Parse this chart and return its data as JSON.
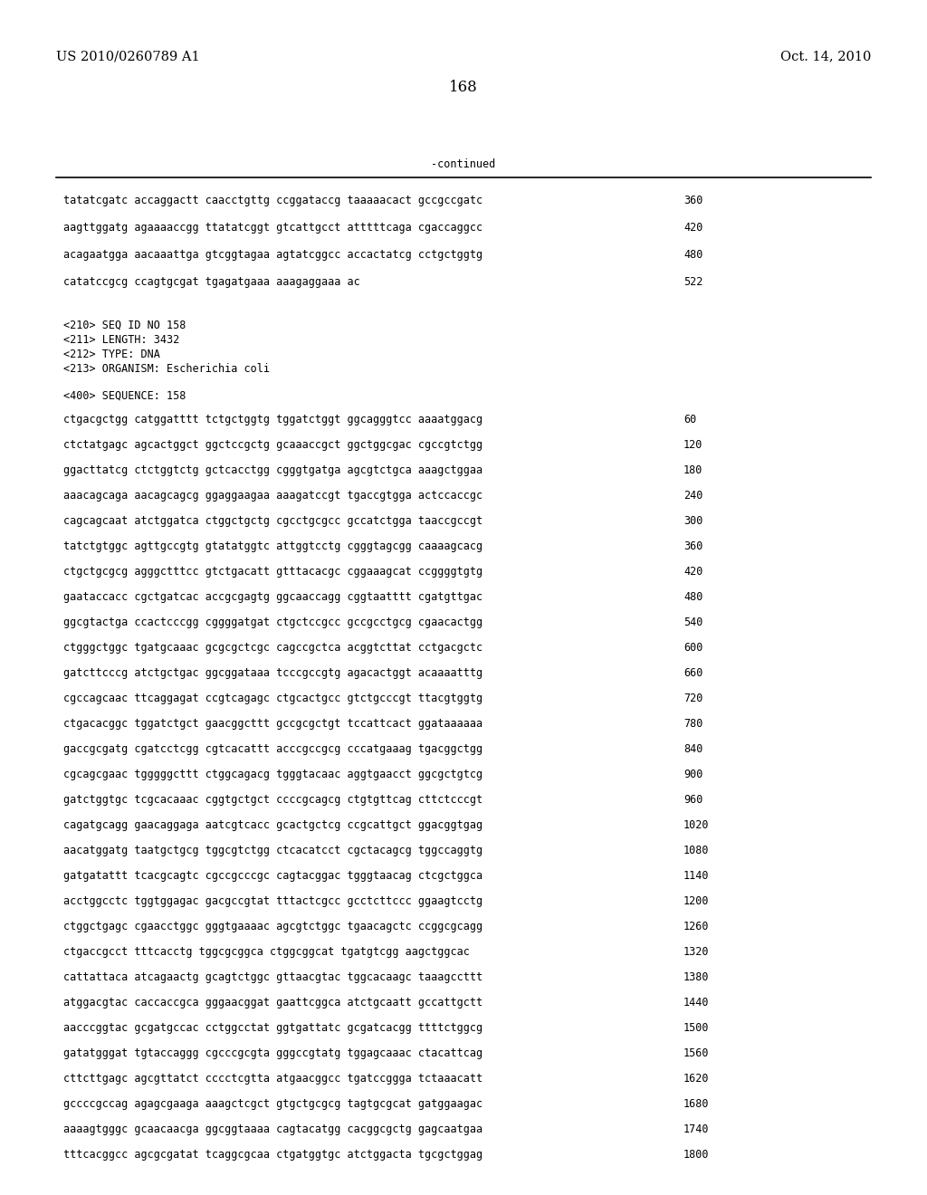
{
  "header_left": "US 2010/0260789 A1",
  "header_right": "Oct. 14, 2010",
  "page_number": "168",
  "continued_label": "-continued",
  "background_color": "#ffffff",
  "text_color": "#000000",
  "font_size_header": 10.5,
  "font_size_body": 8.5,
  "font_size_page": 12.0,
  "continued_lines": [
    [
      "tatatcgatc accaggactt caacctgttg ccggataccg taaaaacact gccgccgatc",
      "360"
    ],
    [
      "aagttggatg agaaaaccgg ttatatcggt gtcattgcct atttttcaga cgaccaggcc",
      "420"
    ],
    [
      "acagaatgga aacaaattga gtcggtagaa agtatcggcc accactatcg cctgctggtg",
      "480"
    ],
    [
      "catatccgcg ccagtgcgat tgagatgaaa aaagaggaaa ac",
      "522"
    ]
  ],
  "meta_lines": [
    "<210> SEQ ID NO 158",
    "<211> LENGTH: 3432",
    "<212> TYPE: DNA",
    "<213> ORGANISM: Escherichia coli"
  ],
  "sequence_header": "<400> SEQUENCE: 158",
  "sequence_lines": [
    [
      "ctgacgctgg catggatttt tctgctggtg tggatctggt ggcagggtcc aaaatggacg",
      "60"
    ],
    [
      "ctctatgagc agcactggct ggctccgctg gcaaaccgct ggctggcgac cgccgtctgg",
      "120"
    ],
    [
      "ggacttatcg ctctggtctg gctcacctgg cgggtgatga agcgtctgca aaagctggaa",
      "180"
    ],
    [
      "aaacagcaga aacagcagcg ggaggaagaa aaagatccgt tgaccgtgga actccaccgc",
      "240"
    ],
    [
      "cagcagcaat atctggatca ctggctgctg cgcctgcgcc gccatctgga taaccgccgt",
      "300"
    ],
    [
      "tatctgtggc agttgccgtg gtatatggtc attggtcctg cgggtagcgg caaaagcacg",
      "360"
    ],
    [
      "ctgctgcgcg agggctttcc gtctgacatt gtttacacgc cggaaagcat ccggggtgtg",
      "420"
    ],
    [
      "gaataccacc cgctgatcac accgcgagtg ggcaaccagg cggtaatttt cgatgttgac",
      "480"
    ],
    [
      "ggcgtactga ccactcccgg cggggatgat ctgctccgcc gccgcctgcg cgaacactgg",
      "540"
    ],
    [
      "ctgggctggc tgatgcaaac gcgcgctcgc cagccgctca acggtcttat cctgacgctc",
      "600"
    ],
    [
      "gatcttcccg atctgctgac ggcggataaa tcccgccgtg agacactggt acaaaatttg",
      "660"
    ],
    [
      "cgccagcaac ttcaggagat ccgtcagagc ctgcactgcc gtctgcccgt ttacgtggtg",
      "720"
    ],
    [
      "ctgacacggc tggatctgct gaacggcttt gccgcgctgt tccattcact ggataaaaaa",
      "780"
    ],
    [
      "gaccgcgatg cgatcctcgg cgtcacattt acccgccgcg cccatgaaag tgacggctgg",
      "840"
    ],
    [
      "cgcagcgaac tgggggcttt ctggcagacg tgggtacaac aggtgaacct ggcgctgtcg",
      "900"
    ],
    [
      "gatctggtgc tcgcacaaac cggtgctgct ccccgcagcg ctgtgttcag cttctcccgt",
      "960"
    ],
    [
      "cagatgcagg gaacaggaga aatcgtcacc gcactgctcg ccgcattgct ggacggtgag",
      "1020"
    ],
    [
      "aacatggatg taatgctgcg tggcgtctgg ctcacatcct cgctacagcg tggccaggtg",
      "1080"
    ],
    [
      "gatgatattt tcacgcagtc cgccgcccgc cagtacggac tgggtaacag ctcgctggca",
      "1140"
    ],
    [
      "acctggcctc tggtggagac gacgccgtat tttactcgcc gcctcttccc ggaagtcctg",
      "1200"
    ],
    [
      "ctggctgagc cgaacctggc gggtgaaaac agcgtctggc tgaacagctc ccggcgcagg",
      "1260"
    ],
    [
      "ctgaccgcct tttcacctg tggcgcggca ctggcggcat tgatgtcgg aagctggcac",
      "1320"
    ],
    [
      "cattattaca atcagaactg gcagtctggc gttaacgtac tggcacaagc taaagccttt",
      "1380"
    ],
    [
      "atggacgtac caccaccgca gggaacggat gaattcggca atctgcaatt gccattgctt",
      "1440"
    ],
    [
      "aacccggtac gcgatgccac cctggcctat ggtgattatc gcgatcacgg ttttctggcg",
      "1500"
    ],
    [
      "gatatgggat tgtaccaggg cgcccgcgta gggccgtatg tggagcaaac ctacattcag",
      "1560"
    ],
    [
      "cttcttgagc agcgttatct cccctcgtta atgaacggcc tgatccggga tctaaacatt",
      "1620"
    ],
    [
      "gccccgccag agagcgaaga aaagctcgct gtgctgcgcg tagtgcgcat gatggaagac",
      "1680"
    ],
    [
      "aaaagtgggc gcaacaacga ggcggtaaaa cagtacatgg cacggcgctg gagcaatgaa",
      "1740"
    ],
    [
      "tttcacggcc agcgcgatat tcaggcgcaa ctgatggtgc atctggacta tgcgctggag",
      "1800"
    ]
  ]
}
